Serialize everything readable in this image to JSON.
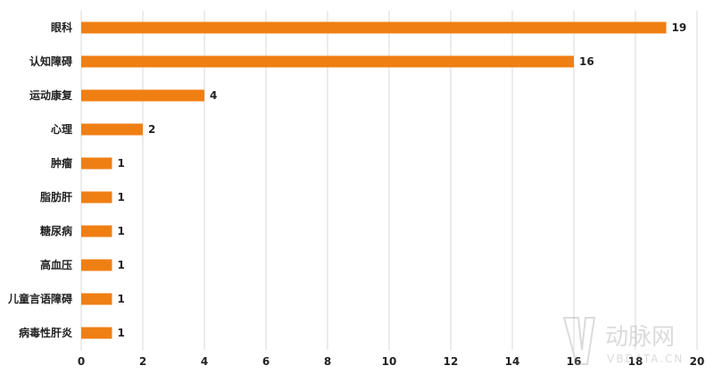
{
  "chart_data": {
    "type": "bar",
    "orientation": "horizontal",
    "categories": [
      "眼科",
      "认知障碍",
      "运动康复",
      "心理",
      "肿瘤",
      "脂肪肝",
      "糖尿病",
      "高血压",
      "儿童言语障碍",
      "病毒性肝炎"
    ],
    "values": [
      19,
      16,
      4,
      2,
      1,
      1,
      1,
      1,
      1,
      1
    ],
    "xlim": [
      0,
      20
    ],
    "xticks": [
      0,
      2,
      4,
      6,
      8,
      10,
      12,
      14,
      16,
      18,
      20
    ],
    "grid": true,
    "title": "",
    "xlabel": "",
    "ylabel": "",
    "bar_color": "#F07F13"
  },
  "watermark": {
    "logo_text": "动脉网",
    "site_text": "VBDATA.CN"
  }
}
